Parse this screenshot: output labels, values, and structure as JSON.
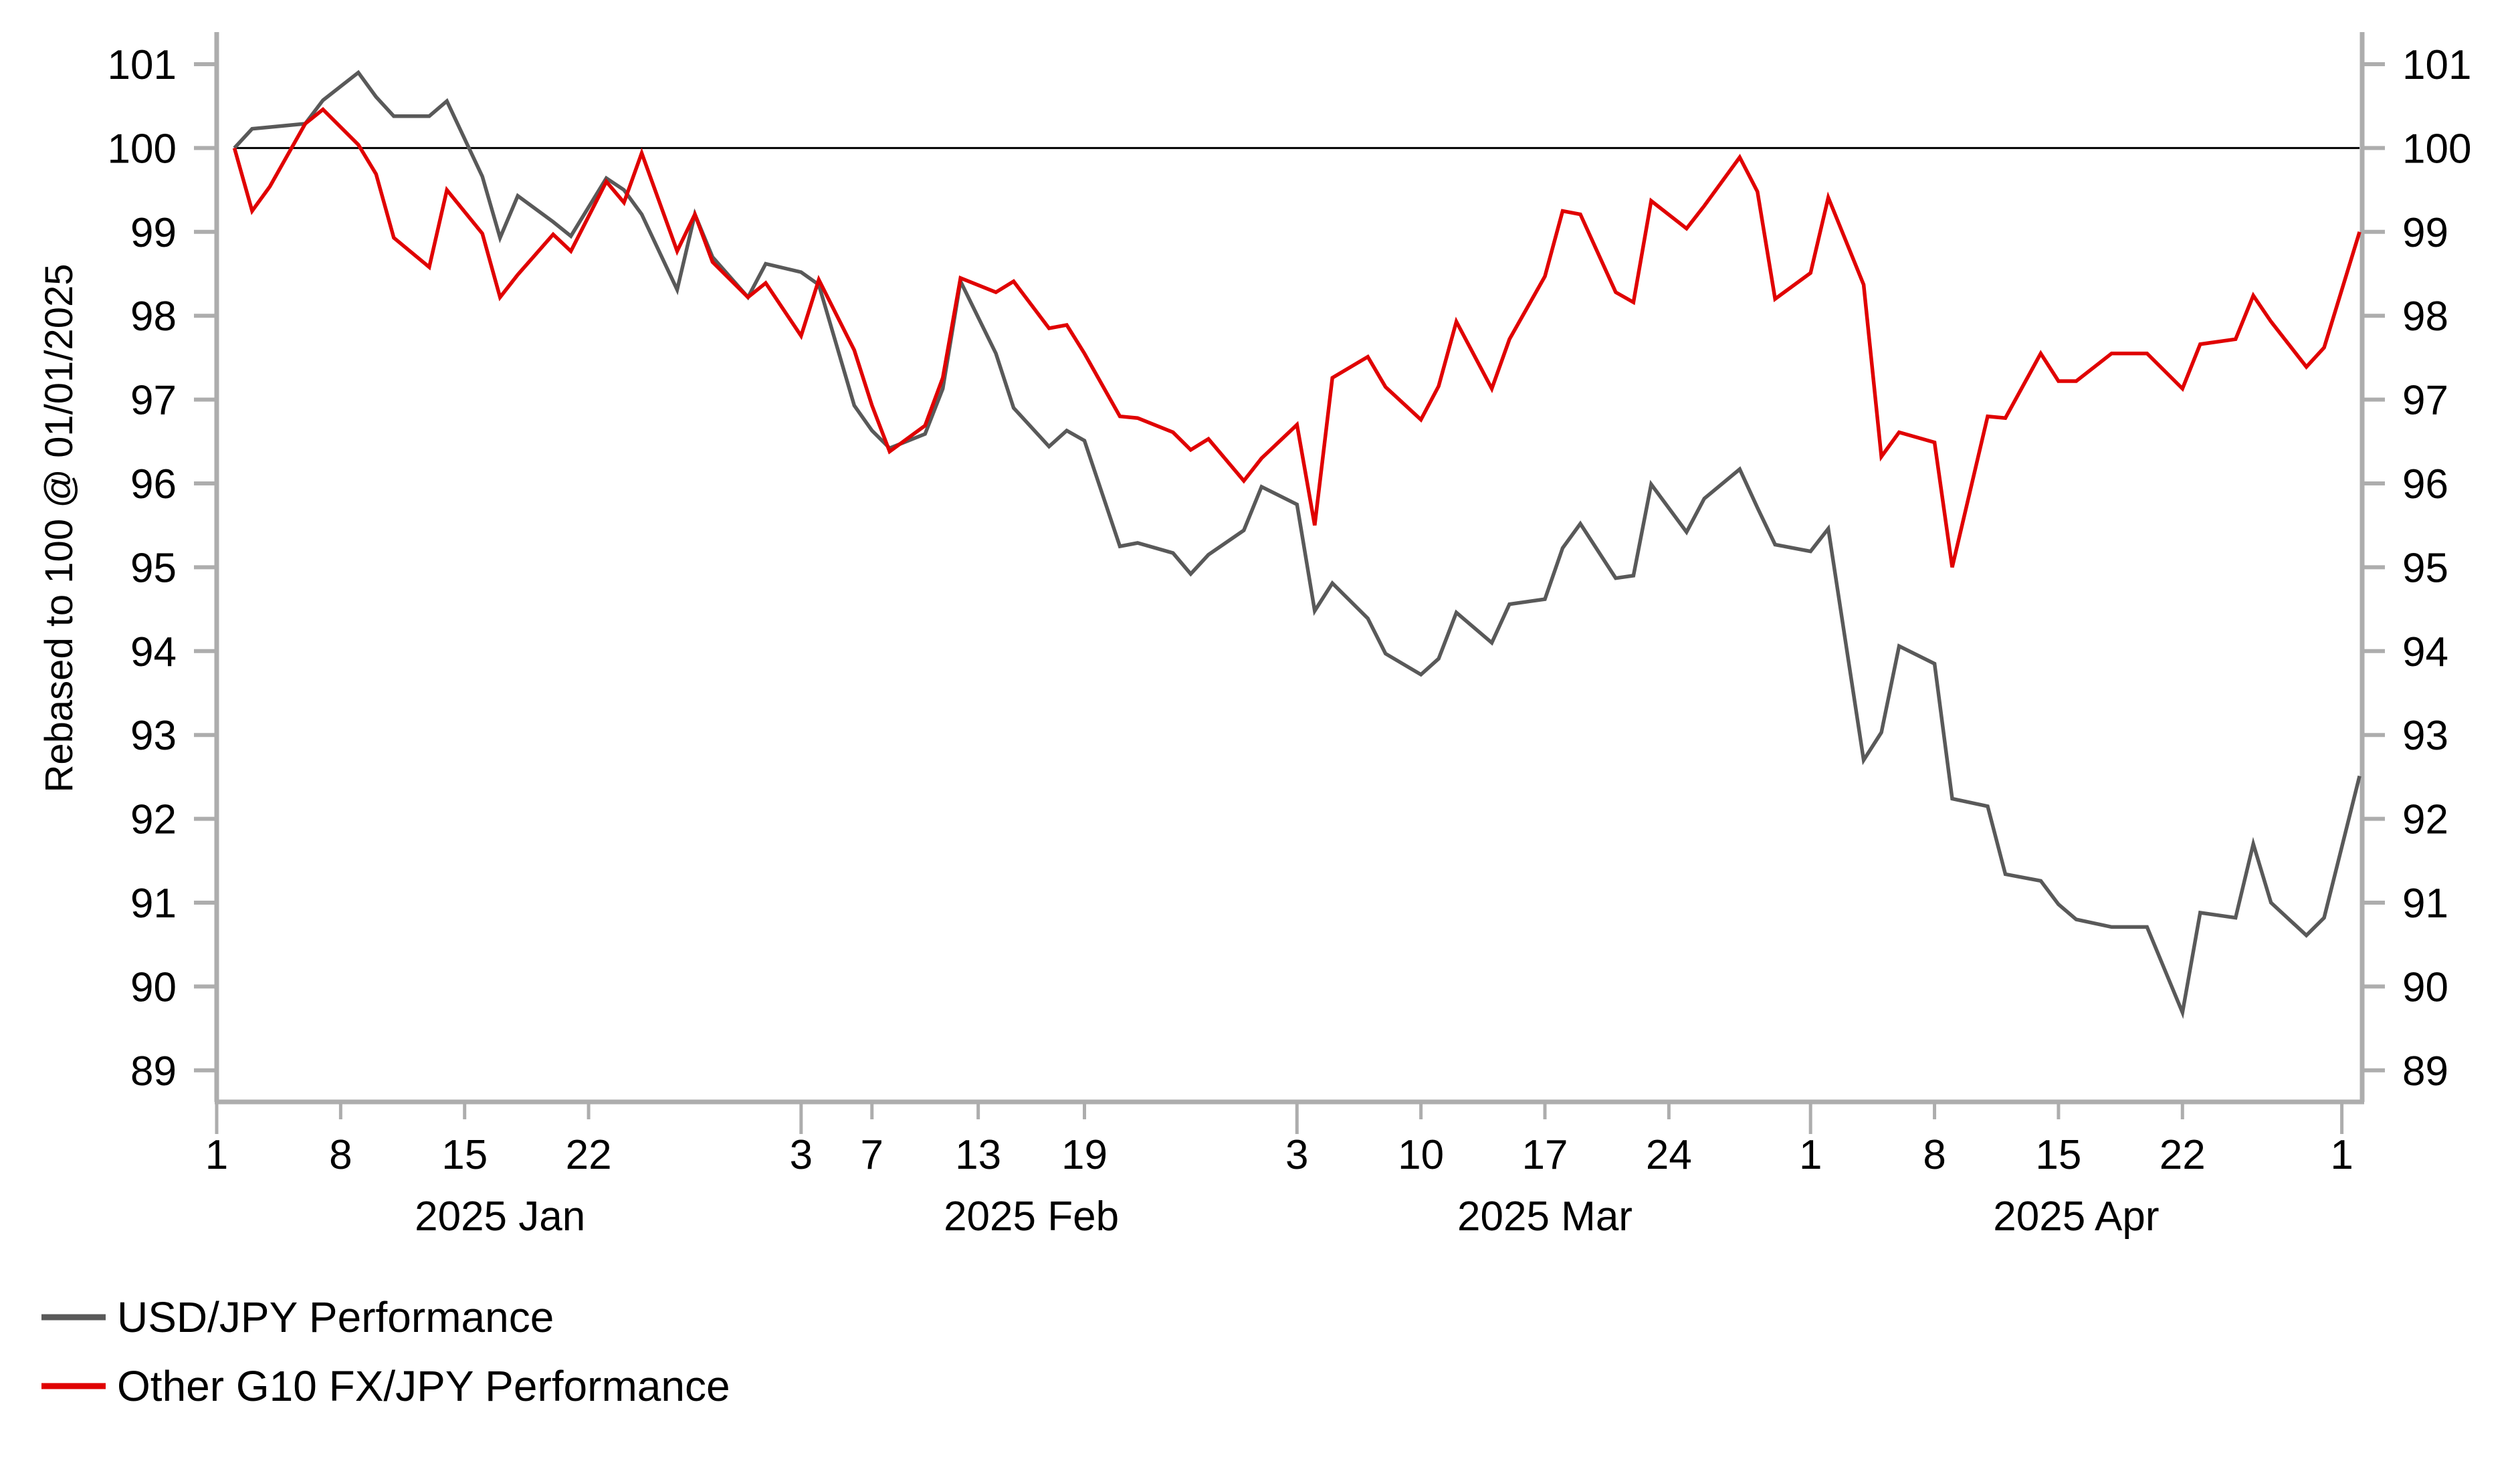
{
  "chart_data": {
    "type": "line",
    "title": "",
    "ylabel": "Rebased to 100 @ 01/01/2025",
    "xlabel": "",
    "x_unit": "days since 2025-01-01",
    "ylim": [
      88.6,
      101.3
    ],
    "xlim": [
      0,
      122
    ],
    "grid": false,
    "reference_line": 100,
    "legend_position": "bottom-left",
    "y_ticks": [
      "101",
      "100",
      "99",
      "98",
      "97",
      "96",
      "95",
      "94",
      "93",
      "92",
      "91",
      "90",
      "89"
    ],
    "y_tick_values": [
      101,
      100,
      99,
      98,
      97,
      96,
      95,
      94,
      93,
      92,
      91,
      90,
      89
    ],
    "x_ticks": [
      {
        "day": 0,
        "label": "1",
        "major": true
      },
      {
        "day": 7,
        "label": "8",
        "major": false
      },
      {
        "day": 14,
        "label": "15",
        "major": false
      },
      {
        "day": 21,
        "label": "22",
        "major": false
      },
      {
        "day": 33,
        "label": "3",
        "major": true
      },
      {
        "day": 37,
        "label": "7",
        "major": false
      },
      {
        "day": 43,
        "label": "13",
        "major": false
      },
      {
        "day": 49,
        "label": "19",
        "major": false
      },
      {
        "day": 61,
        "label": "3",
        "major": true
      },
      {
        "day": 68,
        "label": "10",
        "major": false
      },
      {
        "day": 75,
        "label": "17",
        "major": false
      },
      {
        "day": 82,
        "label": "24",
        "major": false
      },
      {
        "day": 90,
        "label": "1",
        "major": true
      },
      {
        "day": 97,
        "label": "8",
        "major": false
      },
      {
        "day": 104,
        "label": "15",
        "major": false
      },
      {
        "day": 111,
        "label": "22",
        "major": false
      },
      {
        "day": 120,
        "label": "1",
        "major": true
      }
    ],
    "month_labels": [
      {
        "day": 16,
        "label": "2025 Jan"
      },
      {
        "day": 46,
        "label": "2025 Feb"
      },
      {
        "day": 75,
        "label": "2025 Mar"
      },
      {
        "day": 105,
        "label": "2025 Apr"
      }
    ],
    "x": [
      1,
      2,
      3,
      5,
      6,
      8,
      9,
      10,
      12,
      13,
      15,
      16,
      17,
      19,
      20,
      22,
      23,
      24,
      26,
      27,
      28,
      30,
      31,
      33,
      34,
      36,
      37,
      38,
      40,
      41,
      42,
      44,
      45,
      47,
      48,
      49,
      51,
      52,
      54,
      55,
      56,
      58,
      59,
      61,
      62,
      63,
      65,
      66,
      68,
      69,
      70,
      72,
      73,
      75,
      76,
      77,
      79,
      80,
      81,
      83,
      84,
      86,
      87,
      88,
      90,
      91,
      93,
      94,
      95,
      97,
      98,
      100,
      101,
      103,
      104,
      105,
      107,
      108,
      109,
      111,
      112,
      114,
      115,
      116,
      118,
      119,
      121
    ],
    "series": [
      {
        "name": "USD/JPY Performance",
        "color": "#595959",
        "values": [
          100.0,
          100.23,
          100.25,
          100.29,
          100.57,
          100.9,
          100.61,
          100.38,
          100.38,
          100.56,
          99.66,
          98.93,
          99.43,
          99.12,
          98.95,
          99.64,
          99.5,
          99.21,
          98.31,
          99.21,
          98.7,
          98.22,
          98.62,
          98.52,
          98.37,
          96.93,
          96.63,
          96.42,
          96.59,
          97.13,
          98.41,
          97.55,
          96.9,
          96.44,
          96.63,
          96.51,
          95.25,
          95.29,
          95.17,
          94.92,
          95.15,
          95.44,
          95.96,
          95.75,
          94.48,
          94.81,
          94.39,
          93.97,
          93.72,
          93.91,
          94.46,
          94.1,
          94.56,
          94.62,
          95.23,
          95.52,
          94.87,
          94.9,
          95.99,
          95.42,
          95.82,
          96.17,
          95.71,
          95.27,
          95.19,
          95.46,
          92.7,
          93.03,
          94.06,
          93.85,
          92.24,
          92.15,
          91.34,
          91.26,
          90.98,
          90.8,
          90.71,
          90.71,
          90.71,
          89.69,
          90.88,
          90.82,
          91.7,
          91.0,
          90.61,
          90.82,
          92.51
        ]
      },
      {
        "name": "Other G10 FX/JPY Performance",
        "color": "#E00000",
        "values": [
          100.0,
          99.25,
          99.54,
          100.29,
          100.46,
          100.04,
          99.69,
          98.93,
          98.58,
          99.5,
          98.98,
          98.22,
          98.49,
          98.97,
          98.77,
          99.6,
          99.35,
          99.94,
          98.77,
          99.21,
          98.64,
          98.22,
          98.39,
          97.76,
          98.43,
          97.59,
          96.93,
          96.38,
          96.69,
          97.26,
          98.45,
          98.28,
          98.41,
          97.85,
          97.89,
          97.55,
          96.8,
          96.78,
          96.61,
          96.4,
          96.53,
          96.03,
          96.3,
          96.7,
          95.5,
          97.26,
          97.51,
          97.15,
          96.76,
          97.16,
          97.93,
          97.13,
          97.72,
          98.47,
          99.25,
          99.21,
          98.28,
          98.16,
          99.37,
          99.04,
          99.31,
          99.89,
          99.48,
          98.2,
          98.51,
          99.41,
          98.37,
          96.32,
          96.61,
          96.49,
          95.0,
          96.8,
          96.78,
          97.55,
          97.22,
          97.22,
          97.55,
          97.55,
          97.55,
          97.13,
          97.66,
          97.72,
          98.24,
          97.93,
          97.39,
          97.62,
          99.0
        ]
      }
    ],
    "legend": [
      {
        "label": "USD/JPY Performance",
        "color": "#595959"
      },
      {
        "label": "Other G10 FX/JPY Performance",
        "color": "#E00000"
      }
    ],
    "colors": {
      "axis": "#ADADAD",
      "reference_line": "#000000"
    }
  }
}
